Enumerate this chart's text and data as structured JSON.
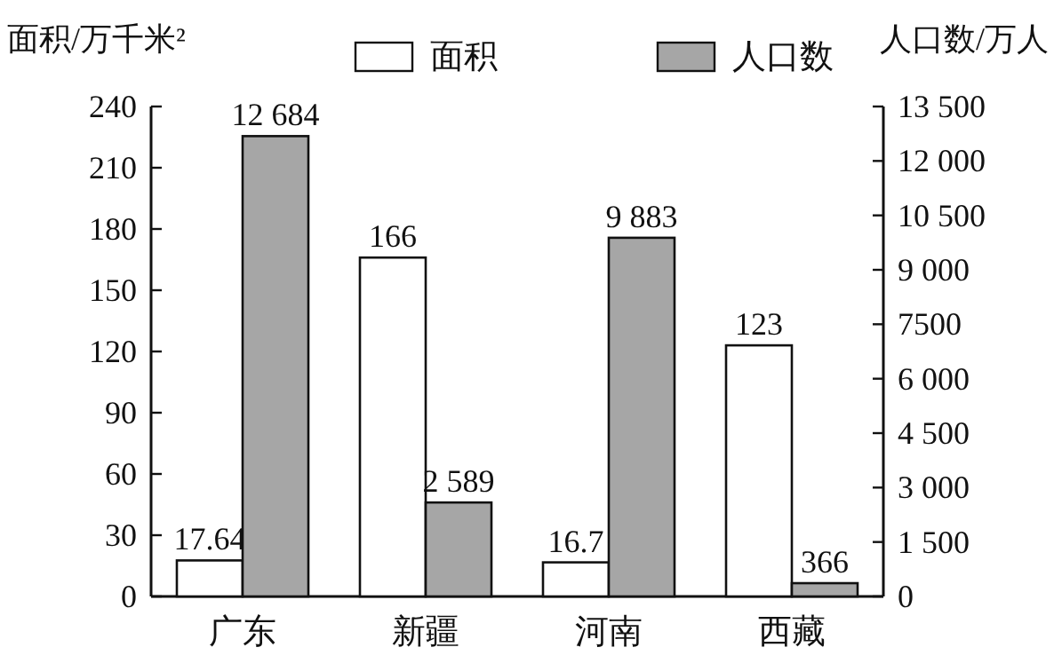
{
  "chart_data": {
    "type": "bar",
    "ylabel": "面积/万千米²",
    "y2label": "人口数/万人",
    "categories": [
      "广东",
      "新疆",
      "河南",
      "西藏"
    ],
    "series": [
      {
        "name": "面积",
        "color": "#ffffff",
        "values": [
          17.64,
          166,
          16.7,
          123
        ],
        "value_labels": [
          "17.64",
          "166",
          "16.7",
          "123"
        ]
      },
      {
        "name": "人口数",
        "color": "#a6a6a6",
        "axis": "y2",
        "values": [
          12684,
          2589,
          9883,
          366
        ],
        "value_labels": [
          "12 684",
          "2 589",
          "9 883",
          "366"
        ]
      }
    ],
    "ylim": [
      0,
      240
    ],
    "yticks": [
      0,
      30,
      60,
      90,
      120,
      150,
      180,
      210,
      240
    ],
    "y2lim": [
      0,
      13500
    ],
    "y2ticks": [
      0,
      {
        "value": 1500,
        "label": "1 500"
      },
      {
        "value": 3000,
        "label": "3 000"
      },
      {
        "value": 4500,
        "label": "4 500"
      },
      {
        "value": 6000,
        "label": "6 000"
      },
      {
        "value": 7500,
        "label": "7500"
      },
      {
        "value": 9000,
        "label": "9 000"
      },
      {
        "value": 10500,
        "label": "10 500"
      },
      {
        "value": 12000,
        "label": "12 000"
      },
      {
        "value": 13500,
        "label": "13 500"
      }
    ],
    "grid": false,
    "legend": "top"
  }
}
